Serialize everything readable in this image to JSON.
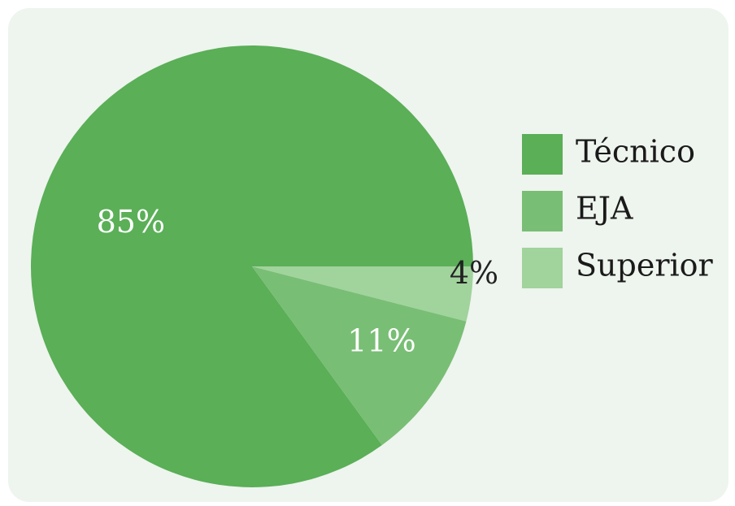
{
  "chart_data": {
    "type": "pie",
    "start_angle_deg": 0,
    "direction": "counterclockwise",
    "slices": [
      {
        "label": "Técnico",
        "value": 85,
        "display": "85%",
        "color": "#5aaf57",
        "label_color": "#ffffff"
      },
      {
        "label": "EJA",
        "value": 11,
        "display": "11%",
        "color": "#79be75",
        "label_color": "#ffffff"
      },
      {
        "label": "Superior",
        "value": 4,
        "display": "4%",
        "color": "#a1d39c",
        "label_color": "#222222"
      }
    ],
    "legend": {
      "position": "right",
      "entries": [
        "Técnico",
        "EJA",
        "Superior"
      ]
    }
  },
  "colors": {
    "background": "#eef4ee"
  }
}
